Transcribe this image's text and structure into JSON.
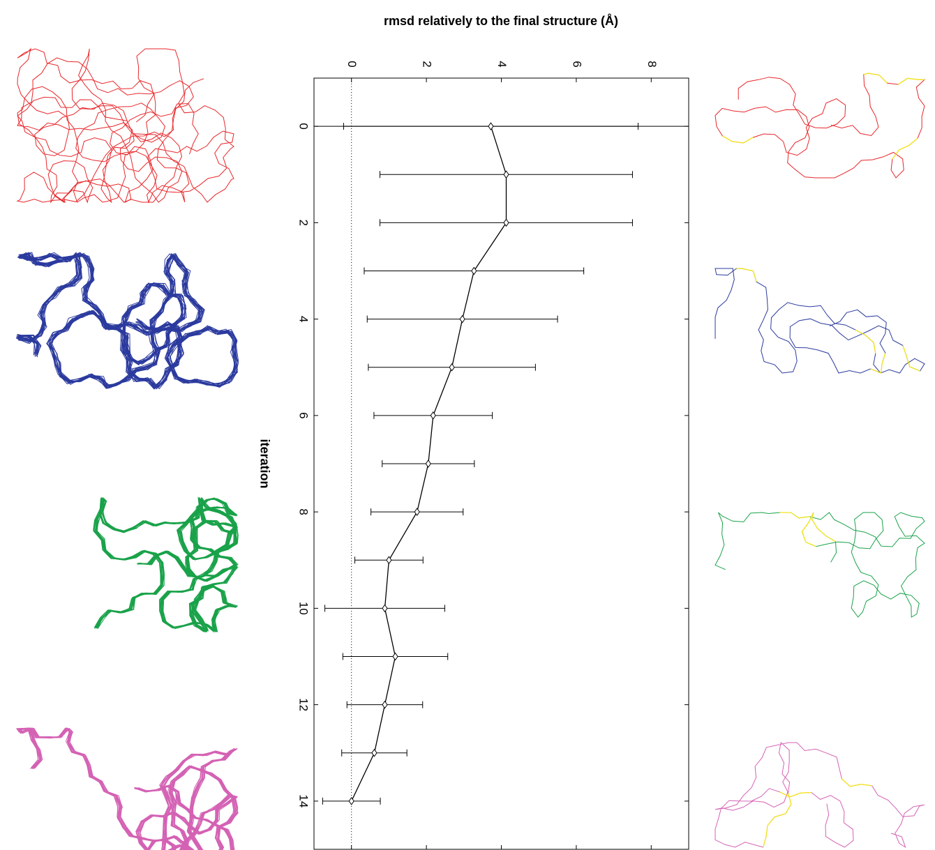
{
  "chart_data": {
    "type": "errorbar_line",
    "xlabel": "iteration",
    "ylabel": "rmsd relatively to the final structure (Å)",
    "x": [
      0,
      1,
      2,
      3,
      4,
      5,
      6,
      7,
      8,
      9,
      10,
      11,
      12,
      13,
      14
    ],
    "values": [
      3.72,
      4.13,
      4.13,
      3.27,
      2.96,
      2.68,
      2.18,
      2.05,
      1.75,
      1.0,
      0.89,
      1.17,
      0.89,
      0.61,
      0
    ],
    "errors": [
      3.93,
      3.37,
      3.37,
      2.93,
      2.54,
      2.23,
      1.58,
      1.23,
      1.23,
      0.91,
      1.6,
      1.4,
      1.01,
      0.87,
      0.77
    ],
    "color": "#000000",
    "xlim": [
      -1,
      15
    ],
    "xticks": [
      0,
      2,
      4,
      6,
      8,
      10,
      12,
      14
    ],
    "ylim": [
      -1,
      9
    ],
    "yticks": [
      0,
      2,
      4,
      6,
      8
    ],
    "hline_y": 0,
    "vline_x": 0
  }
}
